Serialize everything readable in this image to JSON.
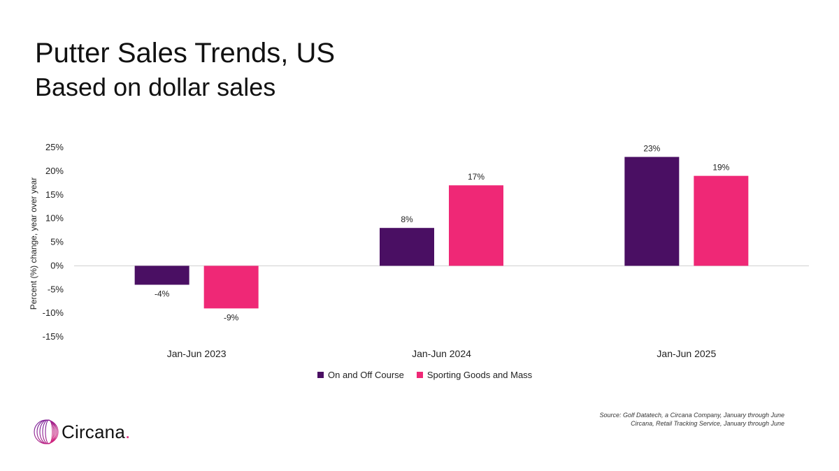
{
  "header": {
    "title": "Putter Sales Trends, US",
    "subtitle": "Based on dollar sales"
  },
  "chart_data": {
    "type": "bar",
    "categories": [
      "Jan-Jun 2023",
      "Jan-Jun 2024",
      "Jan-Jun 2025"
    ],
    "series": [
      {
        "name": "On and Off Course",
        "values": [
          -4,
          8,
          23
        ],
        "labels": [
          "-4%",
          "8%",
          "23%"
        ],
        "color": "#4a0f63"
      },
      {
        "name": "Sporting Goods and Mass",
        "values": [
          -9,
          17,
          19
        ],
        "labels": [
          "-9%",
          "17%",
          "19%"
        ],
        "color": "#ef2876"
      }
    ],
    "ylabel": "Percent (%) change, year over year",
    "xlabel": "",
    "ylim": [
      -15,
      25
    ],
    "yticks": [
      25,
      20,
      15,
      10,
      5,
      0,
      -5,
      -10,
      -15
    ],
    "ytick_labels": [
      "25%",
      "20%",
      "15%",
      "10%",
      "5%",
      "0%",
      "-5%",
      "-10%",
      "-15%"
    ],
    "grid": false,
    "legend_position": "bottom"
  },
  "footer": {
    "source_line1": "Source: Golf Datatech, a Circana Company, January through June",
    "source_line2": "Circana, Retail Tracking Service, January through June",
    "logo_text": "Circana",
    "logo_dot": "."
  }
}
